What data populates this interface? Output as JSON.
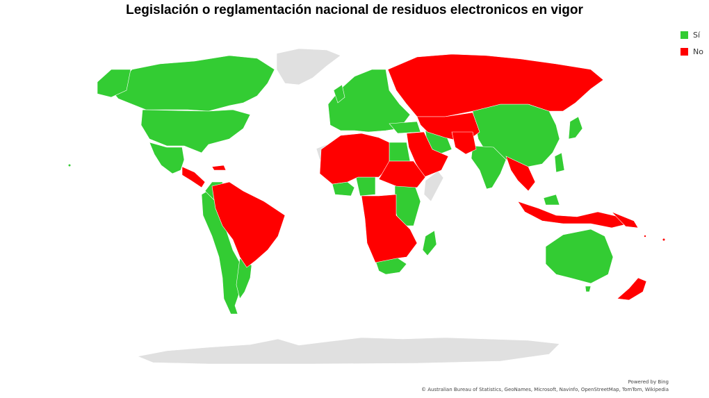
{
  "title": "Legislación o reglamentación nacional de residuos electronicos en vigor",
  "legend": [
    {
      "label": "Sí",
      "color": "#33cc33"
    },
    {
      "label": "No",
      "color": "#ff0000"
    }
  ],
  "colors": {
    "yes": "#33cc33",
    "no": "#ff0000",
    "no_data": "#e0e0e0",
    "border": "#ffffff"
  },
  "credits": {
    "line1": "Powered by Bing",
    "line2": "© Australian Bureau of Statistics, GeoNames, Microsoft, Navinfo, OpenStreetMap, TomTom, Wikipedia"
  }
}
